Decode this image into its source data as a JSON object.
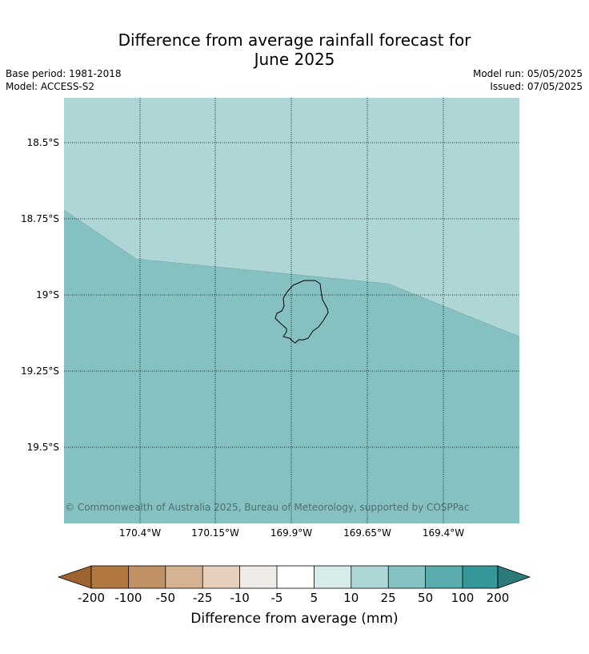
{
  "header": {
    "title_line1": "Difference from average rainfall forecast for",
    "title_line2": "June 2025",
    "base_period": "Base period: 1981-2018",
    "model": "Model: ACCESS-S2",
    "model_run": "Model run: 05/05/2025",
    "issued": "Issued: 07/05/2025"
  },
  "map": {
    "lat_labels": [
      "18.5°S",
      "18.75°S",
      "19°S",
      "19.25°S",
      "19.5°S"
    ],
    "lon_labels": [
      "170.4°W",
      "170.15°W",
      "169.9°W",
      "169.65°W",
      "169.4°W"
    ],
    "copyright": "© Commonwealth of Australia 2025, Bureau of Meteorology, supported by COSPPac",
    "region_colors": {
      "north": "#aed6d6",
      "south": "#86c1c1"
    },
    "coastline_color": "#000000"
  },
  "colorbar": {
    "label": "Difference from average (mm)",
    "ticks": [
      "-200",
      "-100",
      "-50",
      "-25",
      "-10",
      "-5",
      "5",
      "10",
      "25",
      "50",
      "100",
      "200"
    ],
    "colors": [
      "#9d6330",
      "#b0773f",
      "#c09165",
      "#d4b292",
      "#e6cfbd",
      "#efebe7",
      "#ffffff",
      "#d7ebea",
      "#add6d6",
      "#86c1c1",
      "#5aacac",
      "#359797",
      "#2c7a7a"
    ]
  }
}
